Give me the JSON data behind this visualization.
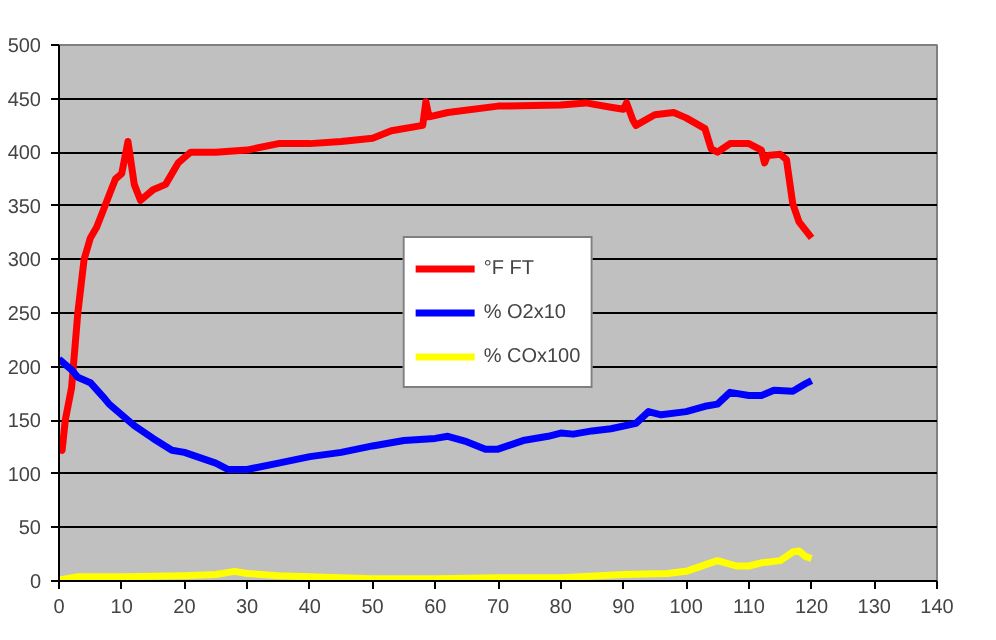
{
  "chart_data": {
    "type": "line",
    "xlim": [
      0,
      140
    ],
    "ylim": [
      0,
      500
    ],
    "xticks": [
      0,
      10,
      20,
      30,
      40,
      50,
      60,
      70,
      80,
      90,
      100,
      110,
      120,
      130,
      140
    ],
    "yticks": [
      0,
      50,
      100,
      150,
      200,
      250,
      300,
      350,
      400,
      450,
      500
    ],
    "grid": "y",
    "legend": "center",
    "marker": "none",
    "line_style": "solid",
    "series": [
      {
        "name": "°F FT",
        "color": "#ff0000",
        "x": [
          0,
          0.5,
          1,
          2,
          3,
          4,
          5,
          6,
          7,
          8,
          9,
          10,
          11,
          12,
          13,
          15,
          17,
          19,
          21,
          25,
          30,
          35,
          40,
          45,
          50,
          53,
          58,
          58.5,
          59,
          62,
          70,
          80,
          84,
          88,
          90,
          90.5,
          91.5,
          92,
          95,
          98,
          100,
          103,
          104,
          105,
          107,
          110,
          112,
          112.5,
          113,
          115,
          116,
          117,
          118,
          120
        ],
        "values": [
          125,
          122,
          150,
          180,
          250,
          300,
          320,
          330,
          345,
          360,
          375,
          380,
          410,
          370,
          355,
          365,
          370,
          390,
          400,
          400,
          402,
          408,
          408,
          410,
          413,
          420,
          425,
          447,
          433,
          437,
          443,
          444,
          446,
          442,
          440,
          446,
          430,
          425,
          435,
          437,
          432,
          422,
          403,
          400,
          408,
          408,
          402,
          390,
          397,
          398,
          393,
          352,
          335,
          320
        ]
      },
      {
        "name": "% O2x10",
        "color": "#0000ff",
        "x": [
          0,
          2,
          3,
          5,
          7,
          8,
          10,
          12,
          15,
          18,
          20,
          25,
          27,
          30,
          35,
          40,
          45,
          50,
          55,
          60,
          62,
          65,
          68,
          70,
          74,
          78,
          80,
          82,
          85,
          88,
          92,
          94,
          96,
          100,
          103,
          105,
          107,
          110,
          112,
          114,
          117,
          119,
          120
        ],
        "values": [
          207,
          197,
          190,
          185,
          172,
          165,
          155,
          145,
          133,
          122,
          120,
          110,
          104,
          104,
          110,
          116,
          120,
          126,
          131,
          133,
          135,
          130,
          123,
          123,
          131,
          135,
          138,
          137,
          140,
          142,
          147,
          158,
          155,
          158,
          163,
          165,
          176,
          173,
          173,
          178,
          177,
          184,
          187
        ]
      },
      {
        "name": "% COx100",
        "color": "#ffff00",
        "x": [
          0,
          3,
          10,
          20,
          25,
          28,
          30,
          35,
          40,
          45,
          50,
          60,
          70,
          80,
          90,
          97,
          100,
          103,
          105,
          108,
          110,
          112,
          115,
          117,
          118,
          119,
          120
        ],
        "values": [
          1,
          4,
          4,
          5,
          6,
          9,
          7,
          5,
          4,
          3,
          2,
          2,
          3,
          3,
          6,
          7,
          9,
          15,
          19,
          14,
          14,
          17,
          19,
          27,
          28,
          23,
          21
        ]
      }
    ]
  }
}
